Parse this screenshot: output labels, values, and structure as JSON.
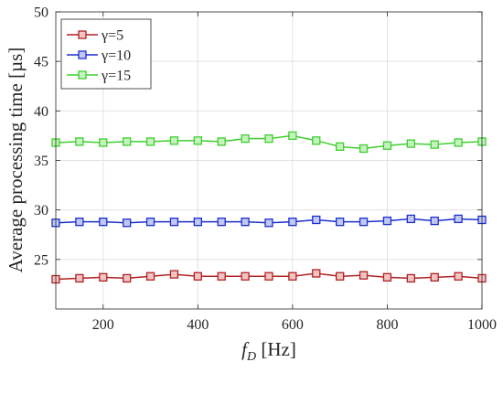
{
  "chart_data": {
    "type": "line",
    "xlabel_main": "f",
    "xlabel_sub": "D",
    "xlabel_unit": " [Hz]",
    "ylabel": "Average processing time [µs]",
    "xlim": [
      100,
      1000
    ],
    "ylim": [
      20,
      50
    ],
    "x_ticks": [
      200,
      400,
      600,
      800,
      1000
    ],
    "y_ticks": [
      25,
      30,
      35,
      40,
      45,
      50
    ],
    "x_tick_labels": [
      "200",
      "400",
      "600",
      "800",
      "1000"
    ],
    "y_tick_labels": [
      "25",
      "30",
      "35",
      "40",
      "45",
      "50"
    ],
    "grid": true,
    "legend_position": "top-left",
    "x": [
      100,
      150,
      200,
      250,
      300,
      350,
      400,
      450,
      500,
      550,
      600,
      650,
      700,
      750,
      800,
      850,
      900,
      950,
      1000
    ],
    "series": [
      {
        "name": "γ=5",
        "color": "#b22222",
        "fill": "#f2c4c4",
        "values": [
          23.0,
          23.1,
          23.2,
          23.1,
          23.3,
          23.5,
          23.3,
          23.3,
          23.3,
          23.3,
          23.3,
          23.6,
          23.3,
          23.4,
          23.2,
          23.1,
          23.2,
          23.3,
          23.1
        ]
      },
      {
        "name": "γ=10",
        "color": "#1c2fcf",
        "fill": "#c2c8f2",
        "values": [
          28.7,
          28.8,
          28.8,
          28.7,
          28.8,
          28.8,
          28.8,
          28.8,
          28.8,
          28.7,
          28.8,
          29.0,
          28.8,
          28.8,
          28.9,
          29.1,
          28.9,
          29.1,
          29.0
        ]
      },
      {
        "name": "γ=15",
        "color": "#3fcf2f",
        "fill": "#c6f2c0",
        "values": [
          36.8,
          36.9,
          36.8,
          36.9,
          36.9,
          37.0,
          37.0,
          36.9,
          37.2,
          37.2,
          37.5,
          37.0,
          36.4,
          36.2,
          36.5,
          36.7,
          36.6,
          36.8,
          36.9
        ]
      }
    ]
  }
}
